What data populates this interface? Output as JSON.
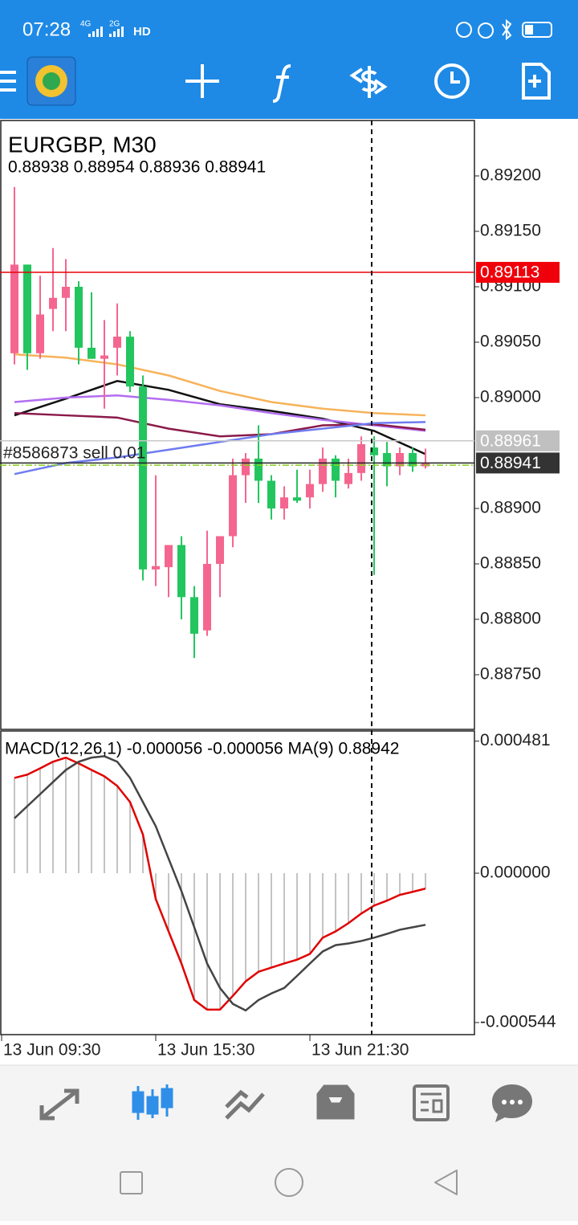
{
  "status_bar": {
    "time": "07:28",
    "network": [
      "4G",
      "2G"
    ],
    "hd": "HD"
  },
  "chart_data": [
    {
      "type": "candlestick",
      "title": "EURGBP, M30",
      "subtitle": "0.88938 0.88954 0.88936 0.88941",
      "up_color": "#f4668f",
      "down_color": "#22c55e",
      "candles": {
        "open": [
          0.8904,
          0.8912,
          0.8904,
          0.8908,
          0.8909,
          0.891,
          0.89045,
          0.89035,
          0.89045,
          0.89055,
          0.8901,
          0.88845,
          0.88847,
          0.88867,
          0.8882,
          0.8879,
          0.8885,
          0.88875,
          0.8893,
          0.88945,
          0.88925,
          0.889,
          0.8891,
          0.8891,
          0.88922,
          0.88945,
          0.88922,
          0.88932,
          0.88955,
          0.8895,
          0.88938,
          0.8895,
          0.88938
        ],
        "high": [
          0.8919,
          0.8912,
          0.8911,
          0.89135,
          0.89125,
          0.89105,
          0.89095,
          0.8907,
          0.89085,
          0.8906,
          0.8902,
          0.8893,
          0.88865,
          0.88875,
          0.8883,
          0.8888,
          0.8887,
          0.88945,
          0.8895,
          0.88975,
          0.8893,
          0.8892,
          0.88935,
          0.88935,
          0.88955,
          0.88948,
          0.88945,
          0.88965,
          0.88965,
          0.8896,
          0.88955,
          0.88955,
          0.88954
        ],
        "low": [
          0.8903,
          0.89025,
          0.89035,
          0.8906,
          0.8906,
          0.8903,
          0.89035,
          0.8899,
          0.8902,
          0.89005,
          0.88835,
          0.8883,
          0.8882,
          0.888,
          0.88765,
          0.88785,
          0.8882,
          0.88865,
          0.88905,
          0.88905,
          0.8889,
          0.8889,
          0.88905,
          0.889,
          0.88915,
          0.8891,
          0.88918,
          0.88925,
          0.8884,
          0.8892,
          0.8893,
          0.88933,
          0.88936
        ],
        "close": [
          0.8912,
          0.8904,
          0.89075,
          0.8909,
          0.891,
          0.89045,
          0.89035,
          0.89038,
          0.89055,
          0.8901,
          0.88845,
          0.88848,
          0.88867,
          0.8882,
          0.88787,
          0.8885,
          0.88875,
          0.8893,
          0.88945,
          0.88925,
          0.889,
          0.8891,
          0.88907,
          0.88922,
          0.88945,
          0.88925,
          0.88932,
          0.88958,
          0.88948,
          0.88938,
          0.8895,
          0.88938,
          0.88941
        ]
      },
      "moving_averages": [
        {
          "color": "#f7b35a",
          "x": [
            0,
            4,
            8,
            12,
            16,
            20,
            24,
            28,
            32
          ],
          "values": [
            0.89039,
            0.89036,
            0.8903,
            0.8902,
            0.89006,
            0.88996,
            0.8899,
            0.88986,
            0.88984
          ]
        },
        {
          "color": "#111111",
          "x": [
            0,
            4,
            8,
            12,
            16,
            20,
            24,
            28,
            32
          ],
          "values": [
            0.88984,
            0.88999,
            0.89015,
            0.89007,
            0.88994,
            0.88988,
            0.88981,
            0.8897,
            0.88949
          ]
        },
        {
          "color": "#b36ef0",
          "x": [
            0,
            4,
            8,
            12,
            16,
            20,
            24,
            28,
            32
          ],
          "values": [
            0.88996,
            0.89,
            0.89002,
            0.88998,
            0.88993,
            0.88986,
            0.8898,
            0.88975,
            0.8897
          ]
        },
        {
          "color": "#8b1a4a",
          "x": [
            0,
            4,
            8,
            12,
            16,
            20,
            24,
            28,
            32
          ],
          "values": [
            0.88986,
            0.88984,
            0.88982,
            0.88972,
            0.88965,
            0.88967,
            0.88975,
            0.88976,
            0.88971
          ]
        },
        {
          "color": "#6f7cf0",
          "x": [
            0,
            4,
            8,
            12,
            16,
            20,
            24,
            28,
            32
          ],
          "values": [
            0.88931,
            0.88941,
            0.88946,
            0.88953,
            0.8896,
            0.88967,
            0.88972,
            0.88977,
            0.88978
          ]
        }
      ],
      "price_lines": [
        {
          "value": 0.89113,
          "color": "#e8000b",
          "tag_color": "#f0000a",
          "text_color": "#ffffff"
        },
        {
          "value": 0.88961,
          "color": "#c8c8c8",
          "tag_color": "#c0c0c0",
          "text_color": "#ffffff"
        },
        {
          "value": 0.88941,
          "color": "#222222",
          "tag_color": "#333333",
          "text_color": "#ffffff"
        }
      ],
      "order": {
        "label": "#8586873 sell 0.01",
        "value": 0.88939,
        "color": "#86d11c"
      },
      "xlim": [
        -1.125,
        35.81
      ],
      "ylim": [
        0.887007,
        0.8925
      ],
      "yticks": [
        {
          "value": 0.892,
          "label": "0.89200"
        },
        {
          "value": 0.8915,
          "label": "0.89150"
        },
        {
          "value": 0.891,
          "label": "0.89100"
        },
        {
          "value": 0.8905,
          "label": "0.89050"
        },
        {
          "value": 0.89,
          "label": "0.89000"
        },
        {
          "value": 0.889,
          "label": "0.88900"
        },
        {
          "value": 0.8885,
          "label": "0.88850"
        },
        {
          "value": 0.888,
          "label": "0.88800"
        },
        {
          "value": 0.8875,
          "label": "0.88750"
        }
      ],
      "xticks": [
        {
          "value": -1,
          "label": "13 Jun 09:30"
        },
        {
          "value": 11,
          "label": "13 Jun 15:30"
        },
        {
          "value": 23,
          "label": "13 Jun 21:30"
        }
      ]
    },
    {
      "type": "macd",
      "title": "MACD(12,26,1) -0.000056 -0.000056 MA(9) 0.88942",
      "xlim": [
        -1.125,
        35.81
      ],
      "ylim": [
        -0.000588,
        0.000518
      ],
      "yticks": [
        0.000481,
        {
          "value": 0,
          "label": "0.000000"
        },
        -0.000544
      ],
      "series": [
        {
          "kind": "histogram",
          "color": "#b0b0b0",
          "values": [
            0.000347,
            0.000359,
            0.000382,
            0.000406,
            0.000421,
            0.0004,
            0.000376,
            0.000353,
            0.000318,
            0.000259,
            0.000141,
            -9.4e-05,
            -0.000212,
            -0.000329,
            -0.000462,
            -0.000497,
            -0.000497,
            -0.000447,
            -0.000394,
            -0.000359,
            -0.000344,
            -0.000329,
            -0.000315,
            -0.000294,
            -0.000235,
            -0.000212,
            -0.000182,
            -0.000147,
            -0.000118,
            -0.0001,
            -7.9e-05,
            -6.8e-05,
            -5.6e-05
          ]
        },
        {
          "kind": "line",
          "color": "#e00000",
          "values": [
            0.000347,
            0.000359,
            0.000382,
            0.000406,
            0.000421,
            0.0004,
            0.000376,
            0.000353,
            0.000318,
            0.000259,
            0.000141,
            -9.4e-05,
            -0.000212,
            -0.000329,
            -0.000462,
            -0.000497,
            -0.000497,
            -0.000447,
            -0.000394,
            -0.000359,
            -0.000344,
            -0.000329,
            -0.000315,
            -0.000294,
            -0.000235,
            -0.000212,
            -0.000182,
            -0.000147,
            -0.000118,
            -0.0001,
            -7.9e-05,
            -6.8e-05,
            -5.6e-05
          ]
        },
        {
          "kind": "line",
          "color": "#444444",
          "values": [
            0.0002,
            0.000244,
            0.000288,
            0.000332,
            0.000376,
            0.000406,
            0.000421,
            0.000426,
            0.000406,
            0.000347,
            0.000259,
            0.000171,
            5.3e-05,
            -6.5e-05,
            -0.000197,
            -0.000329,
            -0.000418,
            -0.000476,
            -0.0005,
            -0.000462,
            -0.000438,
            -0.000418,
            -0.000374,
            -0.000329,
            -0.000285,
            -0.000262,
            -0.000256,
            -0.000247,
            -0.000235,
            -0.000221,
            -0.000206,
            -0.000197,
            -0.000188
          ]
        }
      ]
    }
  ]
}
